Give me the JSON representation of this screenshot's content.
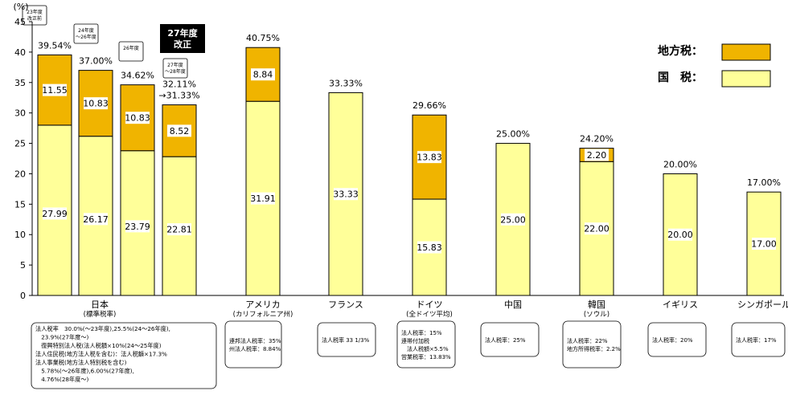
{
  "colors": {
    "national": "#ffff99",
    "local": "#f0b400",
    "stroke": "#000000",
    "badge": "#000000"
  },
  "chart_data": {
    "type": "bar",
    "stacked": true,
    "y_unit": "(%)",
    "ylim": [
      0,
      45
    ],
    "yticks": [
      0,
      5,
      10,
      15,
      20,
      25,
      30,
      35,
      40,
      45
    ],
    "legend_position": "top-right",
    "series": [
      {
        "name": "国　税",
        "key": "national"
      },
      {
        "name": "地方税",
        "key": "local"
      }
    ],
    "bars": [
      {
        "group": 0,
        "national": 27.99,
        "local": 11.55,
        "total_label": "39.54%",
        "tag": "23年度\n改正前"
      },
      {
        "group": 0,
        "national": 26.17,
        "local": 10.83,
        "total_label": "37.00%",
        "tag": "24年度\n～26年度"
      },
      {
        "group": 0,
        "national": 23.79,
        "local": 10.83,
        "total_label": "34.62%",
        "tag": "26年度"
      },
      {
        "group": 0,
        "national": 22.81,
        "local": 8.52,
        "total_label": "32.11%\n→31.33%",
        "tag": "27年度\n～28年度"
      },
      {
        "group": 1,
        "national": 31.91,
        "local": 8.84,
        "total_label": "40.75%"
      },
      {
        "group": 2,
        "national": 33.33,
        "local": null,
        "total_label": "33.33%"
      },
      {
        "group": 3,
        "national": 15.83,
        "local": 13.83,
        "total_label": "29.66%"
      },
      {
        "group": 4,
        "national": 25.0,
        "local": null,
        "total_label": "25.00%"
      },
      {
        "group": 5,
        "national": 22.0,
        "local": 2.2,
        "total_label": "24.20%"
      },
      {
        "group": 6,
        "national": 20.0,
        "local": null,
        "total_label": "20.00%"
      },
      {
        "group": 7,
        "national": 17.0,
        "local": null,
        "total_label": "17.00%"
      }
    ],
    "groups": [
      {
        "name": "日本",
        "sub": "(標準税率)",
        "note": [
          "法人税率　30.0%(～23年度),25.5%(24～26年度),",
          "　23.9%(27年度～)",
          "　復興特別法人税(法人税額×10%(24～25年度)",
          "法人住民税(地方法人税を含む)：法人税額×17.3%",
          "法人事業税(地方法人特別税を含む)",
          "　5.78%(～26年度),6.00%(27年度),",
          "　4.76%(28年度～)"
        ]
      },
      {
        "name": "アメリカ",
        "sub": "(カリフォルニア州)",
        "note": [
          "連邦法人税率：35%",
          "州法人税率：8.84%"
        ]
      },
      {
        "name": "フランス",
        "sub": "",
        "note": [
          "法人税率 33 1/3%"
        ]
      },
      {
        "name": "ドイツ",
        "sub": "(全ドイツ平均)",
        "note": [
          "法人税率：15%",
          "連帯付加税",
          "　法人税額×5.5%",
          "営業税率：13.83%"
        ]
      },
      {
        "name": "中国",
        "sub": "",
        "note": [
          "法人税率：25%"
        ]
      },
      {
        "name": "韓国",
        "sub": "(ソウル)",
        "note": [
          "法人税率：22%",
          "地方所得税率：2.2%"
        ]
      },
      {
        "name": "イギリス",
        "sub": "",
        "note": [
          "法人税率：20%"
        ]
      },
      {
        "name": "シンガポール",
        "sub": "",
        "note": [
          "法人税率：17%"
        ]
      }
    ],
    "badge": "27年度\n改正"
  }
}
